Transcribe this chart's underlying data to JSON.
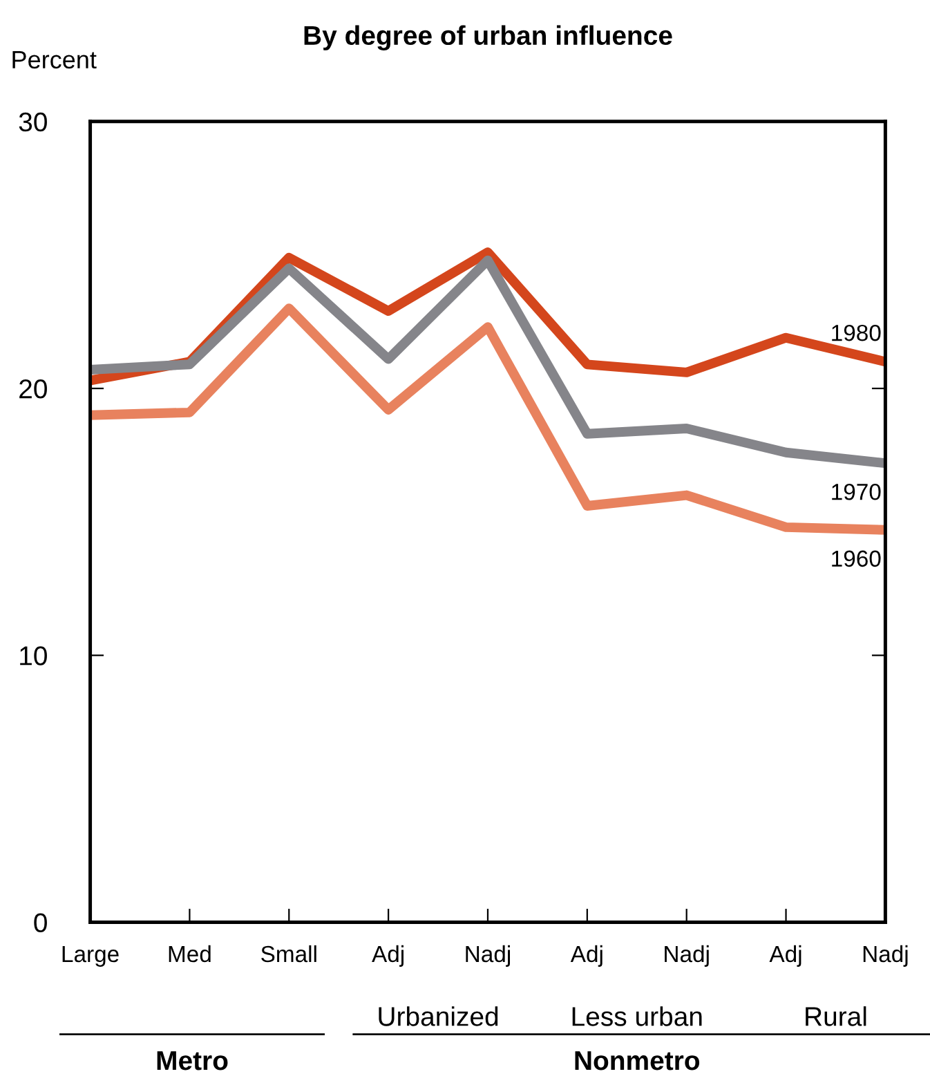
{
  "chart_data": {
    "type": "line",
    "title": "By degree of urban influence",
    "ylabel": "Percent",
    "categories": [
      "Large",
      "Med",
      "Small",
      "Adj",
      "Nadj",
      "Adj",
      "Nadj",
      "Adj",
      "Nadj"
    ],
    "series": [
      {
        "name": "1980",
        "color": "#d4461c",
        "values": [
          20.3,
          21.0,
          24.9,
          22.9,
          25.1,
          20.9,
          20.6,
          21.9,
          21.0
        ]
      },
      {
        "name": "1970",
        "color": "#85858a",
        "values": [
          20.7,
          20.9,
          24.5,
          21.1,
          24.8,
          18.3,
          18.5,
          17.6,
          17.2
        ]
      },
      {
        "name": "1960",
        "color": "#e8825e",
        "values": [
          19.0,
          19.1,
          23.0,
          19.2,
          22.3,
          15.6,
          16.0,
          14.8,
          14.7
        ]
      }
    ],
    "ylim": [
      0,
      30
    ],
    "yticks": [
      0,
      10,
      20,
      30
    ],
    "grid": false,
    "legend": false,
    "marker": "none",
    "line_style": "solid",
    "annotations": [
      "Urbanized",
      "Less urban",
      "Rural",
      "Metro",
      "Nonmetro"
    ]
  }
}
